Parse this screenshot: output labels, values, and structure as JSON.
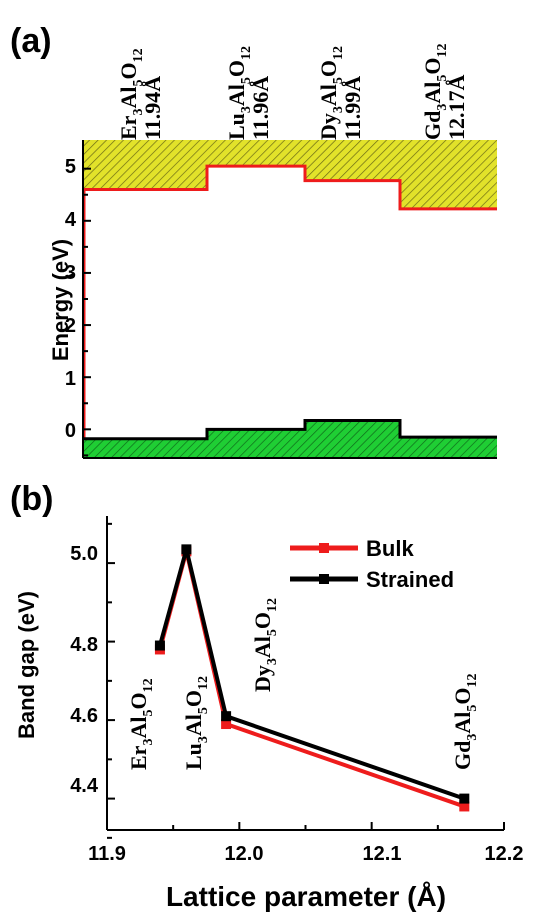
{
  "panel_a": {
    "panel_label": "(a)",
    "ylabel": "Energy (eV)",
    "ytick_labels": [
      "0",
      "1",
      "2",
      "3",
      "4",
      "5"
    ],
    "materials": [
      {
        "formula": {
          "e1": "Er",
          "s1": "3",
          "e2": "Al",
          "s2": "5",
          "e3": "O",
          "s3": "12"
        },
        "lattice": "11.94Å"
      },
      {
        "formula": {
          "e1": "Lu",
          "s1": "3",
          "e2": "Al",
          "s2": "5",
          "e3": "O",
          "s3": "12"
        },
        "lattice": "11.96Å"
      },
      {
        "formula": {
          "e1": "Dy",
          "s1": "3",
          "e2": "Al",
          "s2": "5",
          "e3": "O",
          "s3": "12"
        },
        "lattice": "11.99Å"
      },
      {
        "formula": {
          "e1": "Gd",
          "s1": "3",
          "e2": "Al",
          "s2": "5",
          "e3": "O",
          "s3": "12"
        },
        "lattice": "12.17Å"
      }
    ]
  },
  "panel_b": {
    "panel_label": "(b)",
    "xlabel": "Lattice parameter (Å)",
    "ylabel": "Band gap (eV)",
    "xtick_labels": [
      "11.9",
      "12.0",
      "12.1",
      "12.2"
    ],
    "ytick_labels": [
      "4.4",
      "4.6",
      "4.8",
      "5.0"
    ],
    "annotations": [
      {
        "formula": {
          "e1": "Er",
          "s1": "3",
          "e2": "Al",
          "s2": "5",
          "e3": "O",
          "s3": "12"
        }
      },
      {
        "formula": {
          "e1": "Lu",
          "s1": "3",
          "e2": "Al",
          "s2": "5",
          "e3": "O",
          "s3": "12"
        }
      },
      {
        "formula": {
          "e1": "Dy",
          "s1": "3",
          "e2": "Al",
          "s2": "5",
          "e3": "O",
          "s3": "12"
        }
      },
      {
        "formula": {
          "e1": "Gd",
          "s1": "3",
          "e2": "Al",
          "s2": "5",
          "e3": "O",
          "s3": "12"
        }
      }
    ]
  },
  "colors": {
    "bulk": "#ee1c1c",
    "strained": "#000000",
    "conduction_fill": "#e2e22a",
    "valence_fill": "#1fce34"
  },
  "chart_data": [
    {
      "type": "step",
      "panel": "a",
      "ylabel": "Energy (eV)",
      "ylim": [
        -0.55,
        5.55
      ],
      "categories": [
        "Er3Al5O12",
        "Lu3Al5O12",
        "Dy3Al5O12",
        "Gd3Al5O12"
      ],
      "series": [
        {
          "values": [
            4.6,
            5.05,
            4.77,
            4.23
          ]
        },
        {
          "values": [
            -0.18,
            0.0,
            0.17,
            -0.15
          ]
        }
      ]
    },
    {
      "type": "line",
      "panel": "b",
      "xlabel": "Lattice parameter (Å)",
      "ylabel": "Band gap (eV)",
      "xlim": [
        11.9,
        12.2
      ],
      "ylim": [
        4.32,
        5.12
      ],
      "x": [
        11.94,
        11.96,
        11.99,
        12.17
      ],
      "series": [
        {
          "name": "Bulk",
          "values": [
            4.78,
            5.03,
            4.59,
            4.38
          ]
        },
        {
          "name": "Strained",
          "values": [
            4.79,
            5.035,
            4.61,
            4.4
          ]
        }
      ],
      "legend": "top-right"
    }
  ]
}
